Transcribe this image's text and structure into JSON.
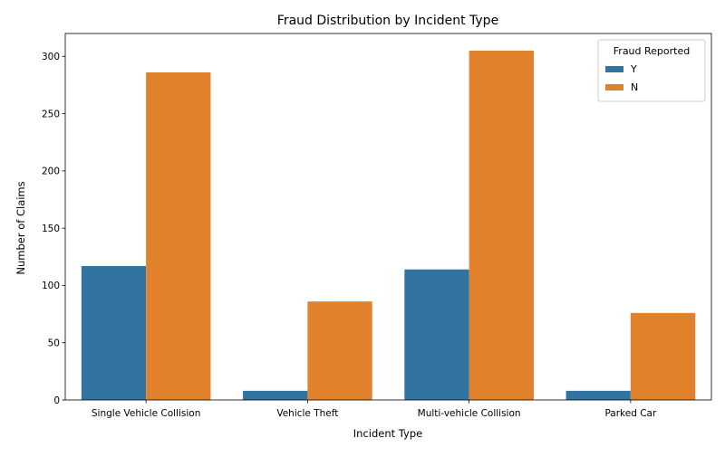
{
  "chart_data": {
    "type": "bar",
    "title": "Fraud Distribution by Incident Type",
    "xlabel": "Incident Type",
    "ylabel": "Number of Claims",
    "categories": [
      "Single Vehicle Collision",
      "Vehicle Theft",
      "Multi-vehicle Collision",
      "Parked Car"
    ],
    "series": [
      {
        "name": "Y",
        "color": "#3274a1",
        "values": [
          117,
          8,
          114,
          8
        ]
      },
      {
        "name": "N",
        "color": "#e1812c",
        "values": [
          286,
          86,
          305,
          76
        ]
      }
    ],
    "ylim": [
      0,
      320
    ],
    "yticks": [
      0,
      50,
      100,
      150,
      200,
      250,
      300
    ],
    "grid": false,
    "legend": {
      "title": "Fraud Reported",
      "placement": "top-right"
    }
  }
}
